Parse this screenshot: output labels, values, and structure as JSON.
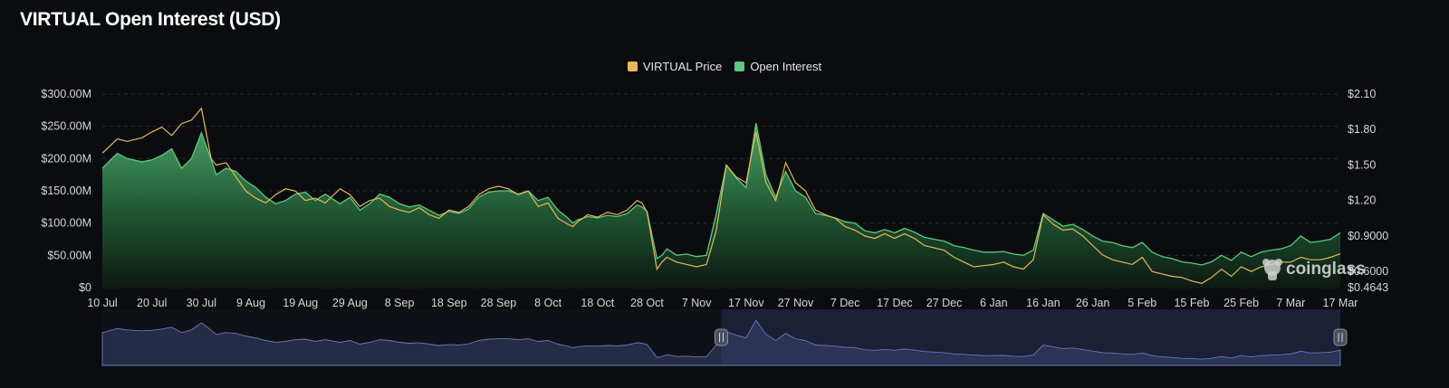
{
  "title": "VIRTUAL Open Interest (USD)",
  "legend": [
    {
      "label": "VIRTUAL Price",
      "color": "#e8b75a"
    },
    {
      "label": "Open Interest",
      "color": "#5cc97f"
    }
  ],
  "watermark": "coinglass",
  "chart_data": {
    "type": "area",
    "title": "VIRTUAL Open Interest (USD)",
    "legend_position": "top-center",
    "grid": true,
    "x_ticks": [
      "10 Jul",
      "20 Jul",
      "30 Jul",
      "9 Aug",
      "19 Aug",
      "29 Aug",
      "8 Sep",
      "18 Sep",
      "28 Sep",
      "8 Oct",
      "18 Oct",
      "28 Oct",
      "7 Nov",
      "17 Nov",
      "27 Nov",
      "7 Dec",
      "17 Dec",
      "27 Dec",
      "6 Jan",
      "16 Jan",
      "26 Jan",
      "5 Feb",
      "15 Feb",
      "25 Feb",
      "7 Mar",
      "17 Mar"
    ],
    "y_left_ticks": [
      "$0",
      "$50.00M",
      "$100.00M",
      "$150.00M",
      "$200.00M",
      "$250.00M",
      "$300.00M"
    ],
    "y_left_range": [
      0,
      300
    ],
    "y_left_unit": "M USD",
    "y_right_ticks": [
      "$0.4643",
      "$0.6000",
      "$0.9000",
      "$1.20",
      "$1.50",
      "$1.80",
      "$2.10"
    ],
    "y_right_range": [
      0.4643,
      2.1
    ],
    "x_days_from_start": [
      0,
      3,
      5,
      8,
      10,
      12,
      14,
      16,
      18,
      20,
      22,
      23,
      25,
      27,
      29,
      31,
      33,
      35,
      37,
      39,
      41,
      43,
      45,
      48,
      50,
      52,
      54,
      56,
      58,
      60,
      62,
      64,
      66,
      68,
      70,
      72,
      74,
      76,
      78,
      80,
      82,
      84,
      86,
      88,
      90,
      92,
      94,
      95,
      96,
      98,
      100,
      102,
      104,
      106,
      108,
      109,
      110,
      112,
      113,
      114,
      116,
      118,
      120,
      122,
      124,
      126,
      128,
      130,
      132,
      134,
      136,
      138,
      140,
      142,
      144,
      146,
      148,
      150,
      152,
      154,
      156,
      158,
      160,
      162,
      164,
      166,
      168,
      170,
      172,
      174,
      176,
      178,
      180,
      182,
      184,
      186,
      188,
      190,
      192,
      194,
      196,
      198,
      200,
      202,
      204,
      206,
      208,
      210,
      212,
      214,
      216,
      218,
      220,
      222,
      224,
      226,
      228,
      230,
      232,
      234,
      236,
      238,
      240,
      242,
      244,
      246,
      248,
      250
    ],
    "series": [
      {
        "name": "Open Interest",
        "axis": "left",
        "values": [
          185,
          208,
          200,
          195,
          198,
          205,
          215,
          185,
          200,
          240,
          198,
          175,
          185,
          180,
          165,
          155,
          140,
          130,
          135,
          145,
          148,
          135,
          145,
          130,
          140,
          120,
          130,
          145,
          140,
          130,
          125,
          128,
          120,
          112,
          118,
          115,
          122,
          140,
          148,
          150,
          150,
          145,
          150,
          135,
          140,
          120,
          108,
          100,
          105,
          110,
          108,
          112,
          110,
          115,
          128,
          125,
          118,
          45,
          50,
          60,
          50,
          52,
          48,
          50,
          115,
          190,
          170,
          155,
          255,
          175,
          140,
          180,
          150,
          140,
          115,
          112,
          108,
          102,
          100,
          88,
          85,
          90,
          85,
          92,
          86,
          78,
          75,
          72,
          65,
          62,
          58,
          55,
          55,
          56,
          52,
          50,
          58,
          115,
          105,
          95,
          98,
          90,
          80,
          72,
          70,
          65,
          62,
          70,
          55,
          48,
          45,
          40,
          38,
          35,
          40,
          50,
          42,
          55,
          48,
          55,
          58,
          60,
          65,
          80,
          70,
          72,
          75,
          85
        ]
      },
      {
        "name": "VIRTUAL Price",
        "axis": "right",
        "values": [
          1.6,
          1.72,
          1.7,
          1.73,
          1.78,
          1.82,
          1.75,
          1.85,
          1.88,
          1.98,
          1.55,
          1.5,
          1.52,
          1.4,
          1.28,
          1.22,
          1.18,
          1.25,
          1.3,
          1.28,
          1.2,
          1.22,
          1.18,
          1.3,
          1.25,
          1.15,
          1.2,
          1.22,
          1.15,
          1.12,
          1.1,
          1.14,
          1.08,
          1.05,
          1.12,
          1.1,
          1.15,
          1.25,
          1.3,
          1.32,
          1.3,
          1.25,
          1.28,
          1.15,
          1.18,
          1.05,
          1.0,
          0.98,
          1.02,
          1.08,
          1.06,
          1.1,
          1.08,
          1.12,
          1.2,
          1.18,
          1.1,
          0.62,
          0.68,
          0.72,
          0.68,
          0.66,
          0.64,
          0.66,
          0.95,
          1.5,
          1.4,
          1.35,
          1.78,
          1.35,
          1.2,
          1.52,
          1.35,
          1.28,
          1.12,
          1.08,
          1.05,
          0.98,
          0.95,
          0.9,
          0.88,
          0.92,
          0.88,
          0.92,
          0.88,
          0.82,
          0.8,
          0.78,
          0.72,
          0.68,
          0.64,
          0.65,
          0.66,
          0.68,
          0.64,
          0.62,
          0.7,
          1.08,
          1.0,
          0.95,
          0.96,
          0.9,
          0.82,
          0.74,
          0.7,
          0.68,
          0.66,
          0.72,
          0.6,
          0.58,
          0.56,
          0.55,
          0.52,
          0.5,
          0.55,
          0.62,
          0.56,
          0.64,
          0.6,
          0.64,
          0.66,
          0.68,
          0.68,
          0.72,
          0.7,
          0.7,
          0.72,
          0.75
        ]
      }
    ],
    "navigator": {
      "selected_range_fraction": [
        0.5,
        1.0
      ]
    }
  }
}
